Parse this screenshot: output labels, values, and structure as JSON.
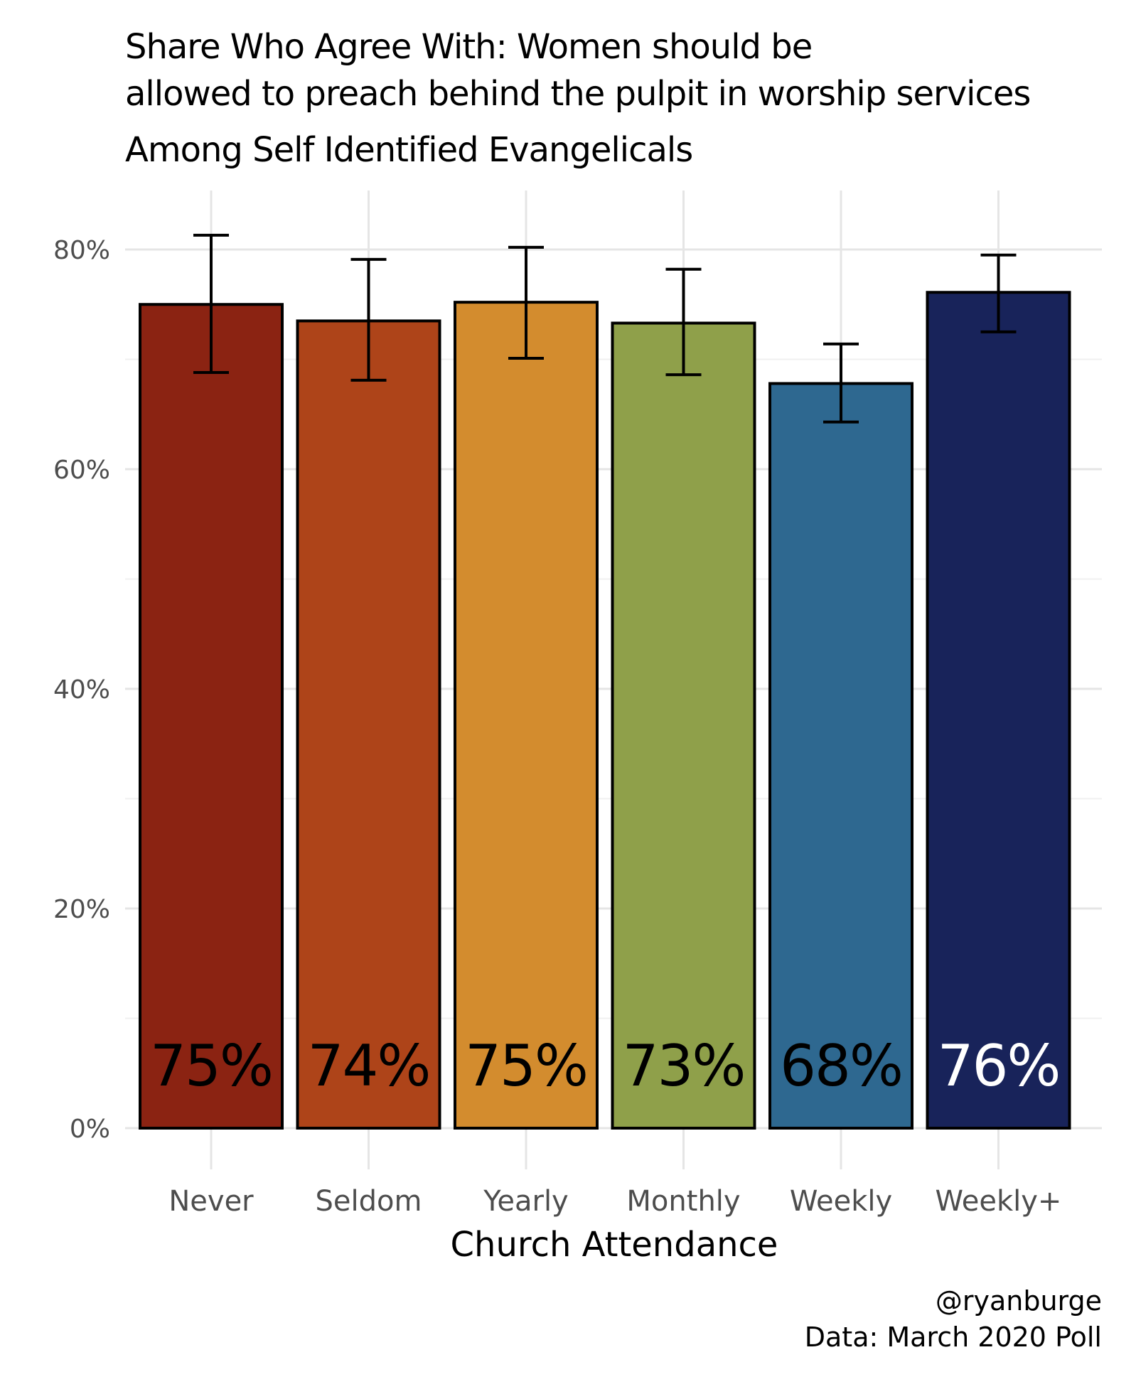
{
  "chart_data": {
    "type": "bar",
    "title_lines": [
      "Share Who Agree With: Women should be",
      "allowed to preach behind the pulpit in worship services",
      "Among Self Identified Evangelicals"
    ],
    "xlabel": "Church Attendance",
    "ylabel": "",
    "categories": [
      "Never",
      "Seldom",
      "Yearly",
      "Monthly",
      "Weekly",
      "Weekly+"
    ],
    "values": [
      0.75,
      0.735,
      0.752,
      0.733,
      0.678,
      0.761
    ],
    "value_labels": [
      "75%",
      "74%",
      "75%",
      "73%",
      "68%",
      "76%"
    ],
    "error_low": [
      0.688,
      0.681,
      0.701,
      0.686,
      0.643,
      0.725
    ],
    "error_high": [
      0.813,
      0.791,
      0.802,
      0.782,
      0.714,
      0.795
    ],
    "colors": [
      "#8B2312",
      "#AE4419",
      "#D38C2E",
      "#8FA04A",
      "#2E6890",
      "#18235A"
    ],
    "label_colors": [
      "#000000",
      "#000000",
      "#000000",
      "#000000",
      "#000000",
      "#ffffff"
    ],
    "ylim": [
      0,
      0.85
    ],
    "y_ticks": [
      0,
      0.2,
      0.4,
      0.6,
      0.8
    ],
    "y_tick_labels": [
      "0%",
      "20%",
      "40%",
      "60%",
      "80%"
    ],
    "grid": true,
    "caption_lines": [
      "@ryanburge",
      "Data: March 2020 Poll"
    ]
  }
}
